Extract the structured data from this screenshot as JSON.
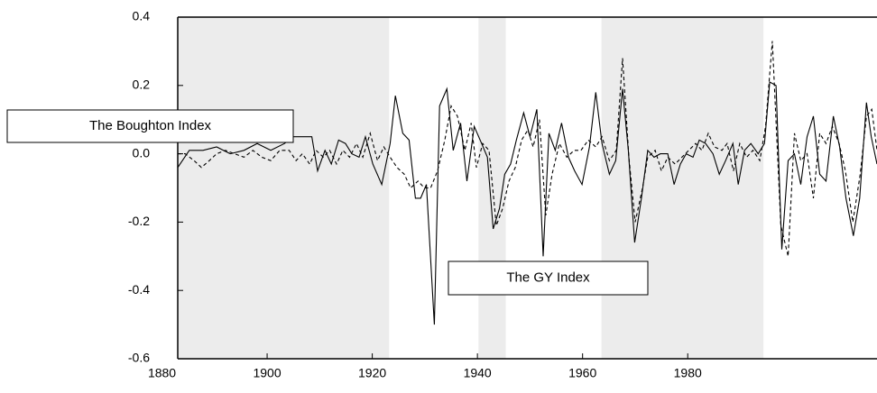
{
  "chart_data": {
    "type": "line",
    "annotations": [
      "The Boughton Index",
      "The GY Index"
    ],
    "xlim": [
      1883,
      2016
    ],
    "xticks": [
      1880,
      1900,
      1920,
      1940,
      1960,
      1980
    ],
    "ylim": [
      -0.6,
      0.4
    ],
    "yticks": [
      -0.6,
      -0.4,
      -0.2,
      {
        "value": 0,
        "label": "0.0"
      },
      0.2,
      0.4
    ],
    "shaded_ranges": [
      [
        1883,
        1923.2
      ],
      [
        1940.2,
        1945.4
      ],
      [
        1963.6,
        1994.4
      ]
    ],
    "shade_color": "#ececec",
    "series": [
      {
        "style": "solid",
        "color": "#000000",
        "x": [
          1883.0,
          1885.2,
          1887.8,
          1890.4,
          1893.0,
          1895.6,
          1898.1,
          1900.7,
          1903.3,
          1905.0,
          1906.7,
          1908.5,
          1909.6,
          1911.0,
          1912.2,
          1913.6,
          1914.9,
          1916.1,
          1917.5,
          1918.7,
          1920.1,
          1921.8,
          1923.4,
          1924.4,
          1925.8,
          1927.0,
          1928.2,
          1929.2,
          1930.3,
          1931.8,
          1932.8,
          1934.2,
          1935.4,
          1936.8,
          1938.0,
          1939.4,
          1940.8,
          1941.9,
          1943.0,
          1944.2,
          1945.2,
          1946.3,
          1947.4,
          1948.8,
          1950.0,
          1951.3,
          1952.5,
          1953.6,
          1954.8,
          1956.0,
          1957.3,
          1958.5,
          1959.9,
          1961.3,
          1962.5,
          1963.7,
          1965.1,
          1966.3,
          1967.6,
          1968.7,
          1969.9,
          1971.2,
          1972.4,
          1973.6,
          1974.8,
          1976.2,
          1977.4,
          1978.6,
          1979.7,
          1981.0,
          1982.2,
          1983.4,
          1984.8,
          1986.0,
          1987.2,
          1988.6,
          1989.6,
          1990.8,
          1992.0,
          1993.4,
          1994.6,
          1995.6,
          1996.8,
          1997.9,
          1999.1,
          2000.3,
          2001.5,
          2002.7,
          2003.9,
          2005.1,
          2006.3,
          2007.7,
          2008.9,
          2010.1,
          2011.5,
          2012.7,
          2014.0,
          2014.9,
          2016.0
        ],
        "values": [
          -0.04,
          0.01,
          0.01,
          0.02,
          0.0,
          0.01,
          0.03,
          0.01,
          0.03,
          0.05,
          0.05,
          0.05,
          -0.05,
          0.01,
          -0.03,
          0.04,
          0.03,
          0.0,
          -0.01,
          0.05,
          -0.03,
          -0.09,
          0.03,
          0.17,
          0.06,
          0.04,
          -0.13,
          -0.13,
          -0.09,
          -0.5,
          0.14,
          0.19,
          0.01,
          0.09,
          -0.08,
          0.08,
          0.03,
          -0.01,
          -0.22,
          -0.16,
          -0.06,
          -0.03,
          0.04,
          0.12,
          0.05,
          0.13,
          -0.3,
          0.06,
          0.01,
          0.09,
          -0.01,
          -0.05,
          -0.09,
          0.02,
          0.18,
          0.03,
          -0.06,
          -0.02,
          0.19,
          0.01,
          -0.26,
          -0.13,
          0.01,
          -0.01,
          0.0,
          0.0,
          -0.09,
          -0.03,
          0.0,
          -0.01,
          0.04,
          0.03,
          0.0,
          -0.06,
          -0.02,
          0.03,
          -0.09,
          0.01,
          0.03,
          0.0,
          0.03,
          0.21,
          0.2,
          -0.28,
          -0.02,
          0.0,
          -0.09,
          0.05,
          0.11,
          -0.06,
          -0.08,
          0.11,
          0.02,
          -0.13,
          -0.24,
          -0.13,
          0.15,
          0.05,
          -0.03
        ]
      },
      {
        "style": "dashed",
        "color": "#000000",
        "x": [
          1883.0,
          1884.4,
          1886.1,
          1887.5,
          1889.0,
          1890.4,
          1892.1,
          1893.8,
          1895.6,
          1897.3,
          1899.0,
          1900.7,
          1902.4,
          1904.2,
          1905.5,
          1906.7,
          1908.1,
          1909.3,
          1910.7,
          1911.9,
          1913.2,
          1914.4,
          1915.7,
          1917.0,
          1918.2,
          1919.6,
          1921.0,
          1922.2,
          1923.4,
          1924.7,
          1926.1,
          1927.3,
          1928.7,
          1929.9,
          1931.1,
          1932.4,
          1933.8,
          1935.0,
          1936.2,
          1937.6,
          1938.8,
          1939.8,
          1941.0,
          1942.2,
          1943.6,
          1944.8,
          1946.0,
          1947.2,
          1948.4,
          1949.6,
          1950.6,
          1951.8,
          1953.0,
          1954.2,
          1955.6,
          1957.0,
          1958.4,
          1959.7,
          1961.1,
          1962.5,
          1963.7,
          1965.1,
          1966.4,
          1967.6,
          1968.8,
          1970.0,
          1971.4,
          1972.4,
          1973.8,
          1975.0,
          1976.2,
          1977.6,
          1978.9,
          1980.2,
          1981.5,
          1982.7,
          1983.9,
          1985.1,
          1986.5,
          1987.5,
          1988.7,
          1989.9,
          1991.2,
          1992.4,
          1993.7,
          1994.8,
          1996.1,
          1997.7,
          1999.1,
          2000.3,
          2001.5,
          2002.7,
          2003.9,
          2005.1,
          2006.3,
          2007.5,
          2008.8,
          2010.0,
          2011.4,
          2012.8,
          2014.0,
          2015.0,
          2016.0
        ],
        "values": [
          0.0,
          0.0,
          -0.02,
          -0.04,
          -0.02,
          0.0,
          0.01,
          0.0,
          -0.01,
          0.01,
          -0.01,
          -0.02,
          0.01,
          0.01,
          -0.02,
          0.0,
          -0.03,
          0.01,
          -0.01,
          0.01,
          -0.03,
          0.01,
          -0.01,
          0.03,
          -0.01,
          0.06,
          -0.02,
          0.02,
          -0.01,
          -0.04,
          -0.06,
          -0.1,
          -0.08,
          -0.1,
          -0.1,
          -0.05,
          0.04,
          0.14,
          0.11,
          0.01,
          0.09,
          -0.04,
          0.03,
          0.01,
          -0.21,
          -0.16,
          -0.08,
          -0.04,
          0.04,
          0.07,
          0.02,
          0.1,
          -0.18,
          -0.06,
          0.03,
          -0.01,
          0.01,
          0.01,
          0.04,
          0.02,
          0.05,
          -0.02,
          0.01,
          0.28,
          -0.01,
          -0.2,
          -0.1,
          -0.01,
          0.01,
          -0.05,
          -0.01,
          -0.03,
          -0.01,
          0.01,
          0.03,
          0.01,
          0.06,
          0.02,
          0.01,
          0.03,
          -0.05,
          0.03,
          -0.01,
          0.01,
          -0.02,
          0.08,
          0.33,
          -0.21,
          -0.3,
          0.06,
          -0.02,
          0.0,
          -0.13,
          0.06,
          0.03,
          0.08,
          0.03,
          -0.05,
          -0.2,
          -0.06,
          0.11,
          0.13,
          0.01
        ]
      }
    ]
  }
}
